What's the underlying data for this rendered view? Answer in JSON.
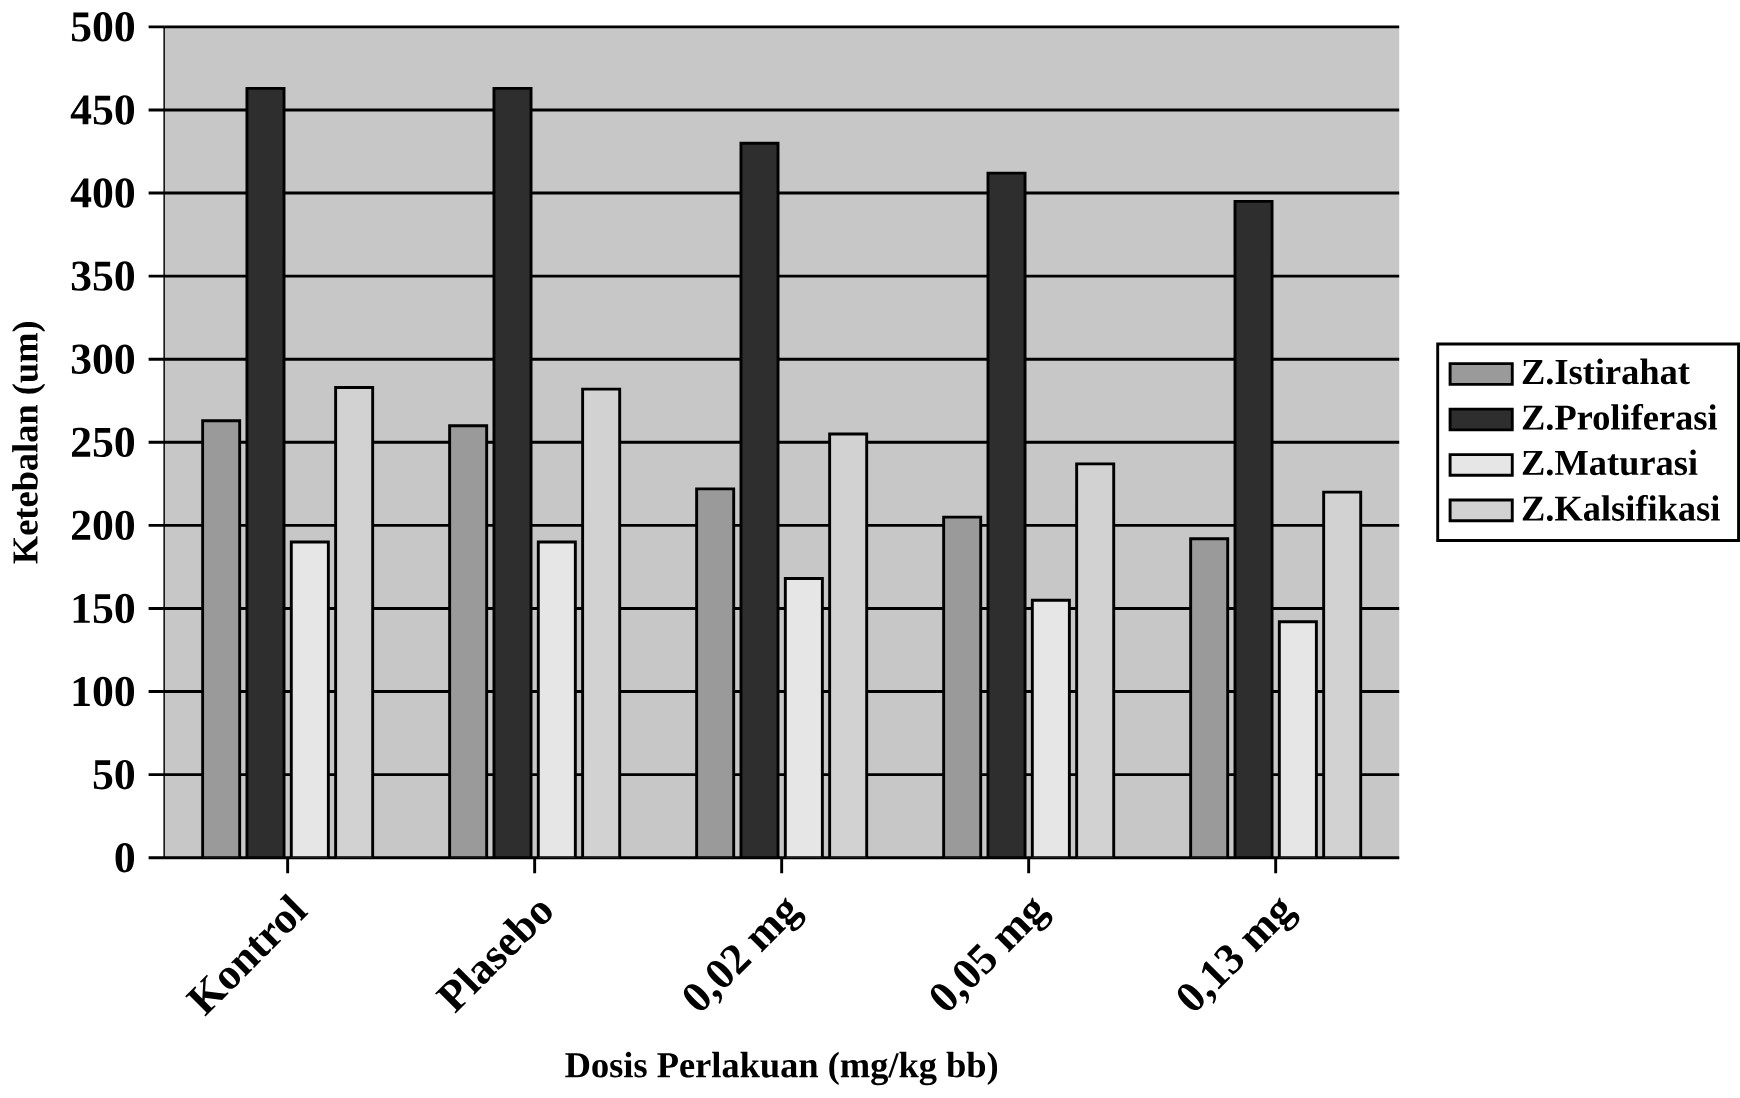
{
  "chart_data": {
    "type": "bar",
    "xlabel": "Dosis Perlakuan (mg/kg bb)",
    "ylabel": "Ketebalan (um)",
    "categories": [
      "Kontrol",
      "Plasebo",
      "0,02 mg",
      "0,05 mg",
      "0,13 mg"
    ],
    "series": [
      {
        "name": "Z.Istirahat",
        "color": "#9a9a9a",
        "values": [
          263,
          260,
          222,
          205,
          192
        ]
      },
      {
        "name": "Z.Proliferasi",
        "color": "#2e2e2e",
        "values": [
          463,
          463,
          430,
          412,
          395
        ]
      },
      {
        "name": "Z.Maturasi",
        "color": "#e6e6e6",
        "values": [
          190,
          190,
          168,
          155,
          142
        ]
      },
      {
        "name": "Z.Kalsifikasi",
        "color": "#d2d2d2",
        "values": [
          283,
          282,
          255,
          237,
          220
        ]
      }
    ],
    "ylim": [
      0,
      500
    ],
    "yticks": [
      0,
      50,
      100,
      150,
      200,
      250,
      300,
      350,
      400,
      450,
      500
    ],
    "grid": "y",
    "legend": "right"
  }
}
